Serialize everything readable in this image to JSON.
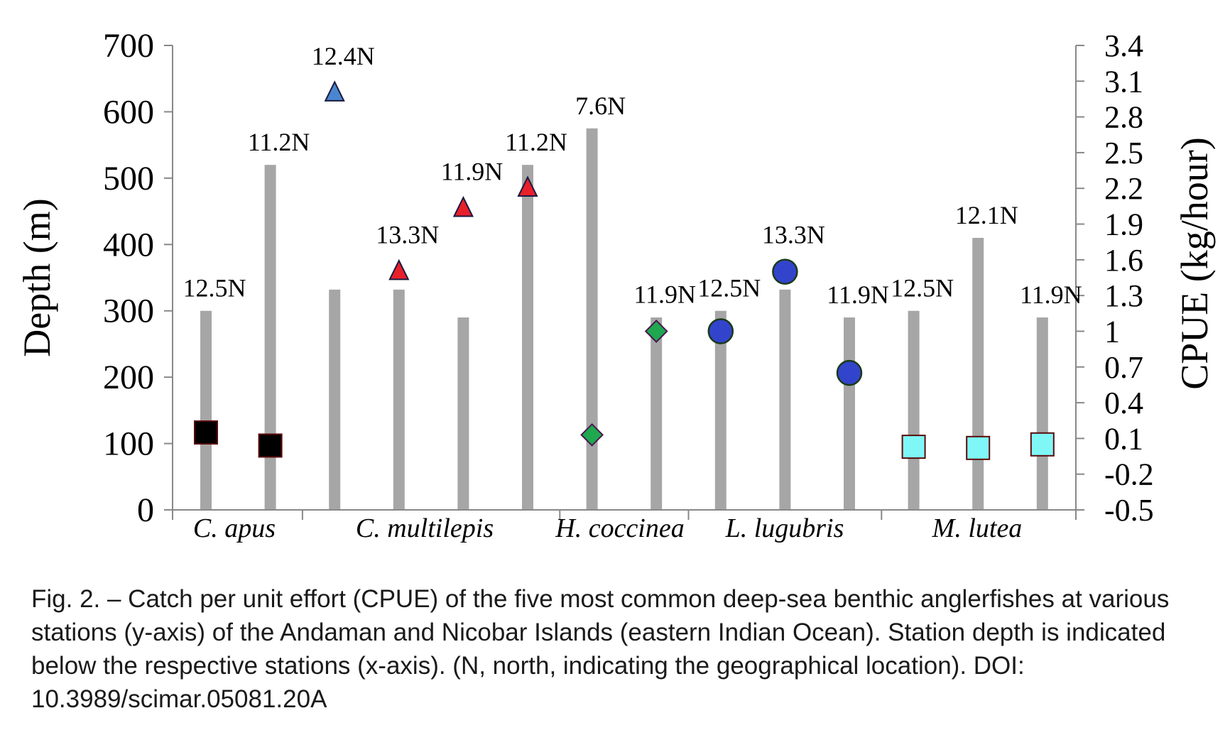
{
  "caption": "Fig. 2. – Catch per unit effort (CPUE) of the five most common deep-sea benthic anglerfishes at various stations (y-axis) of the Andaman and Nicobar Islands (eastern Indian Ocean). Station depth is indicated below the respective stations (x-axis). (N, north, indicating the geographical location). DOI: 10.3989/scimar.05081.20A",
  "chart_data": {
    "type": "bar",
    "ylabel": "Depth (m)",
    "y2label": "CPUE (kg/hour)",
    "ylim": [
      0,
      700
    ],
    "yticks": [
      "0",
      "100",
      "200",
      "300",
      "400",
      "500",
      "600",
      "700"
    ],
    "y2lim": [
      -0.5,
      3.4
    ],
    "y2ticks": [
      "-0.5",
      "-0.2",
      "0.1",
      "0.4",
      "0.7",
      "1",
      "1.3",
      "1.6",
      "1.9",
      "2.2",
      "2.5",
      "2.8",
      "3.1",
      "3.4"
    ],
    "grid": false,
    "species": [
      "C. apus",
      "C. multilepis",
      "H. coccinea",
      "L. lugubris",
      "M. lutea"
    ],
    "stations": [
      {
        "species": "C. apus",
        "depth": 300,
        "label": "12.5N",
        "cpue": 0.15,
        "marker": "square",
        "color": "#000000"
      },
      {
        "species": "C. apus",
        "depth": 520,
        "label": "11.2N",
        "cpue": 0.04,
        "marker": "square",
        "color": "#000000"
      },
      {
        "species": "C. multilepis",
        "depth": 332,
        "label": "12.4N",
        "cpue": 3.0,
        "marker": "triangle",
        "color": "#4a86cf"
      },
      {
        "species": "C. multilepis",
        "depth": 332,
        "label": "13.3N",
        "cpue": 1.5,
        "marker": "triangle",
        "color": "#e8202a"
      },
      {
        "species": "C. multilepis",
        "depth": 290,
        "label": "11.9N",
        "cpue": 2.03,
        "marker": "triangle",
        "color": "#e8202a"
      },
      {
        "species": "C. multilepis",
        "depth": 520,
        "label": "11.2N",
        "cpue": 2.2,
        "marker": "triangle",
        "color": "#e8202a"
      },
      {
        "species": "H. coccinea",
        "depth": 575,
        "label": "7.6N",
        "cpue": 0.13,
        "marker": "diamond",
        "color": "#1fa84f"
      },
      {
        "species": "H. coccinea",
        "depth": 290,
        "label": "11.9N",
        "cpue": 1.0,
        "marker": "diamond",
        "color": "#1fa84f"
      },
      {
        "species": "L. lugubris",
        "depth": 300,
        "label": "12.5N",
        "cpue": 1.0,
        "marker": "circle",
        "color": "#3344cc"
      },
      {
        "species": "L. lugubris",
        "depth": 332,
        "label": "13.3N",
        "cpue": 1.5,
        "marker": "circle",
        "color": "#3344cc"
      },
      {
        "species": "L. lugubris",
        "depth": 290,
        "label": "11.9N",
        "cpue": 0.65,
        "marker": "circle",
        "color": "#3344cc"
      },
      {
        "species": "M. lutea",
        "depth": 300,
        "label": "12.5N",
        "cpue": 0.03,
        "marker": "square",
        "color": "#7ff7f7"
      },
      {
        "species": "M. lutea",
        "depth": 410,
        "label": "12.1N",
        "cpue": 0.02,
        "marker": "square",
        "color": "#7ff7f7"
      },
      {
        "species": "M. lutea",
        "depth": 290,
        "label": "11.9N",
        "cpue": 0.05,
        "marker": "square",
        "color": "#7ff7f7"
      }
    ]
  }
}
